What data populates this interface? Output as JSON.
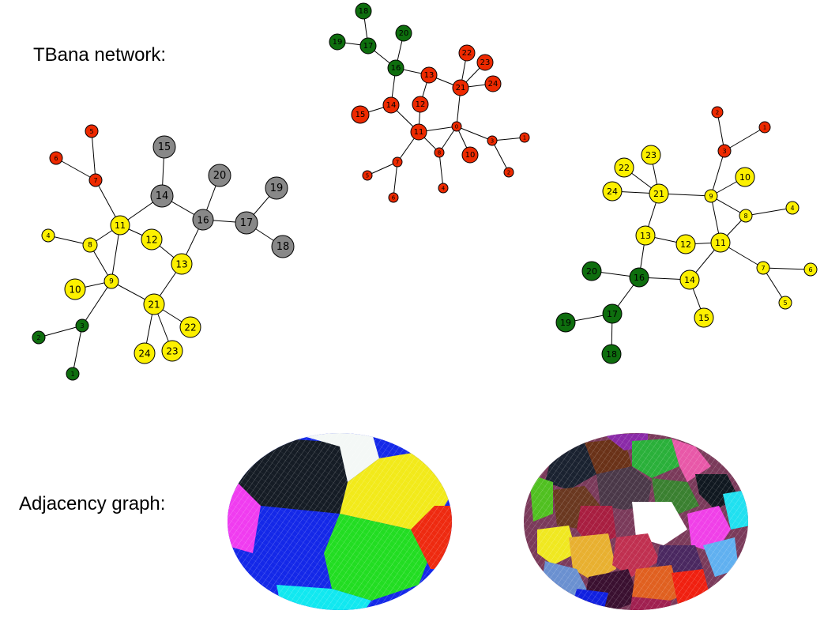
{
  "labels": {
    "network": "TBana network:",
    "adjacency": "Adjacency graph:"
  },
  "colors": {
    "red": "#ee2a00",
    "green": "#0e6e0e",
    "gray": "#888888",
    "yellow": "#fcf000"
  },
  "graphs": [
    {
      "id": "graph-left",
      "edges": [
        [
          5,
          7
        ],
        [
          6,
          7
        ],
        [
          7,
          11
        ],
        [
          11,
          14
        ],
        [
          14,
          15
        ],
        [
          14,
          16
        ],
        [
          16,
          20
        ],
        [
          16,
          17
        ],
        [
          17,
          19
        ],
        [
          17,
          18
        ],
        [
          16,
          13
        ],
        [
          11,
          12
        ],
        [
          12,
          13
        ],
        [
          13,
          21
        ],
        [
          11,
          8
        ],
        [
          11,
          9
        ],
        [
          4,
          8
        ],
        [
          8,
          9
        ],
        [
          9,
          10
        ],
        [
          9,
          21
        ],
        [
          9,
          3
        ],
        [
          3,
          2
        ],
        [
          3,
          1
        ],
        [
          21,
          22
        ],
        [
          21,
          23
        ],
        [
          21,
          24
        ]
      ],
      "nodes": [
        {
          "id": 1,
          "label": "1",
          "color": "green"
        },
        {
          "id": 2,
          "label": "2",
          "color": "green"
        },
        {
          "id": 3,
          "label": "3",
          "color": "green"
        },
        {
          "id": 4,
          "label": "4",
          "color": "yellow"
        },
        {
          "id": 5,
          "label": "5",
          "color": "red"
        },
        {
          "id": 6,
          "label": "6",
          "color": "red"
        },
        {
          "id": 7,
          "label": "7",
          "color": "red"
        },
        {
          "id": 8,
          "label": "8",
          "color": "yellow"
        },
        {
          "id": 9,
          "label": "9",
          "color": "yellow"
        },
        {
          "id": 10,
          "label": "10",
          "color": "yellow"
        },
        {
          "id": 11,
          "label": "11",
          "color": "yellow"
        },
        {
          "id": 12,
          "label": "12",
          "color": "yellow"
        },
        {
          "id": 13,
          "label": "13",
          "color": "yellow"
        },
        {
          "id": 14,
          "label": "14",
          "color": "gray"
        },
        {
          "id": 15,
          "label": "15",
          "color": "gray"
        },
        {
          "id": 16,
          "label": "16",
          "color": "gray"
        },
        {
          "id": 17,
          "label": "17",
          "color": "gray"
        },
        {
          "id": 18,
          "label": "18",
          "color": "gray"
        },
        {
          "id": 19,
          "label": "19",
          "color": "gray"
        },
        {
          "id": 20,
          "label": "20",
          "color": "gray"
        },
        {
          "id": 21,
          "label": "21",
          "color": "yellow"
        },
        {
          "id": 22,
          "label": "22",
          "color": "yellow"
        },
        {
          "id": 23,
          "label": "23",
          "color": "yellow"
        },
        {
          "id": 24,
          "label": "24",
          "color": "yellow"
        }
      ]
    },
    {
      "id": "graph-middle",
      "edges": [
        [
          18,
          17
        ],
        [
          19,
          17
        ],
        [
          17,
          16
        ],
        [
          20,
          16
        ],
        [
          16,
          13
        ],
        [
          16,
          14
        ],
        [
          14,
          15
        ],
        [
          14,
          11
        ],
        [
          13,
          12
        ],
        [
          12,
          11
        ],
        [
          13,
          21
        ],
        [
          21,
          22
        ],
        [
          21,
          23
        ],
        [
          21,
          24
        ],
        [
          21,
          0
        ],
        [
          11,
          0
        ],
        [
          11,
          8
        ],
        [
          11,
          7
        ],
        [
          7,
          5
        ],
        [
          7,
          6
        ],
        [
          8,
          4
        ],
        [
          0,
          8
        ],
        [
          0,
          10
        ],
        [
          0,
          3
        ],
        [
          3,
          1
        ],
        [
          3,
          2
        ]
      ],
      "nodes": [
        {
          "id": 0,
          "label": "0",
          "color": "red"
        },
        {
          "id": 1,
          "label": "1",
          "color": "red"
        },
        {
          "id": 2,
          "label": "2",
          "color": "red"
        },
        {
          "id": 3,
          "label": "3",
          "color": "red"
        },
        {
          "id": 4,
          "label": "4",
          "color": "red"
        },
        {
          "id": 5,
          "label": "5",
          "color": "red"
        },
        {
          "id": 6,
          "label": "6",
          "color": "red"
        },
        {
          "id": 7,
          "label": "7",
          "color": "red"
        },
        {
          "id": 8,
          "label": "8",
          "color": "red"
        },
        {
          "id": 10,
          "label": "10",
          "color": "red"
        },
        {
          "id": 11,
          "label": "11",
          "color": "red"
        },
        {
          "id": 12,
          "label": "12",
          "color": "red"
        },
        {
          "id": 13,
          "label": "13",
          "color": "red"
        },
        {
          "id": 14,
          "label": "14",
          "color": "red"
        },
        {
          "id": 15,
          "label": "15",
          "color": "red"
        },
        {
          "id": 16,
          "label": "16",
          "color": "green"
        },
        {
          "id": 17,
          "label": "17",
          "color": "green"
        },
        {
          "id": 18,
          "label": "18",
          "color": "green"
        },
        {
          "id": 19,
          "label": "19",
          "color": "green"
        },
        {
          "id": 20,
          "label": "20",
          "color": "green"
        },
        {
          "id": 21,
          "label": "21",
          "color": "red"
        },
        {
          "id": 22,
          "label": "22",
          "color": "red"
        },
        {
          "id": 23,
          "label": "23",
          "color": "red"
        },
        {
          "id": 24,
          "label": "24",
          "color": "red"
        }
      ]
    },
    {
      "id": "graph-right",
      "edges": [
        [
          2,
          3
        ],
        [
          1,
          3
        ],
        [
          3,
          9
        ],
        [
          9,
          10
        ],
        [
          9,
          21
        ],
        [
          9,
          8
        ],
        [
          9,
          11
        ],
        [
          8,
          4
        ],
        [
          8,
          11
        ],
        [
          21,
          22
        ],
        [
          21,
          23
        ],
        [
          21,
          24
        ],
        [
          21,
          13
        ],
        [
          13,
          12
        ],
        [
          12,
          11
        ],
        [
          13,
          16
        ],
        [
          11,
          14
        ],
        [
          11,
          7
        ],
        [
          7,
          6
        ],
        [
          7,
          5
        ],
        [
          14,
          15
        ],
        [
          14,
          16
        ],
        [
          16,
          20
        ],
        [
          16,
          17
        ],
        [
          17,
          19
        ],
        [
          17,
          18
        ]
      ],
      "nodes": [
        {
          "id": 1,
          "label": "1",
          "color": "red"
        },
        {
          "id": 2,
          "label": "2",
          "color": "red"
        },
        {
          "id": 3,
          "label": "3",
          "color": "red"
        },
        {
          "id": 4,
          "label": "4",
          "color": "yellow"
        },
        {
          "id": 5,
          "label": "5",
          "color": "yellow"
        },
        {
          "id": 6,
          "label": "6",
          "color": "yellow"
        },
        {
          "id": 7,
          "label": "7",
          "color": "yellow"
        },
        {
          "id": 8,
          "label": "8",
          "color": "yellow"
        },
        {
          "id": 9,
          "label": "9",
          "color": "yellow"
        },
        {
          "id": 10,
          "label": "10",
          "color": "yellow"
        },
        {
          "id": 11,
          "label": "11",
          "color": "yellow"
        },
        {
          "id": 12,
          "label": "12",
          "color": "yellow"
        },
        {
          "id": 13,
          "label": "13",
          "color": "yellow"
        },
        {
          "id": 14,
          "label": "14",
          "color": "yellow"
        },
        {
          "id": 15,
          "label": "15",
          "color": "yellow"
        },
        {
          "id": 16,
          "label": "16",
          "color": "green"
        },
        {
          "id": 17,
          "label": "17",
          "color": "green"
        },
        {
          "id": 18,
          "label": "18",
          "color": "green"
        },
        {
          "id": 19,
          "label": "19",
          "color": "green"
        },
        {
          "id": 20,
          "label": "20",
          "color": "green"
        },
        {
          "id": 21,
          "label": "21",
          "color": "yellow"
        },
        {
          "id": 22,
          "label": "22",
          "color": "yellow"
        },
        {
          "id": 23,
          "label": "23",
          "color": "yellow"
        },
        {
          "id": 24,
          "label": "24",
          "color": "yellow"
        }
      ]
    }
  ]
}
